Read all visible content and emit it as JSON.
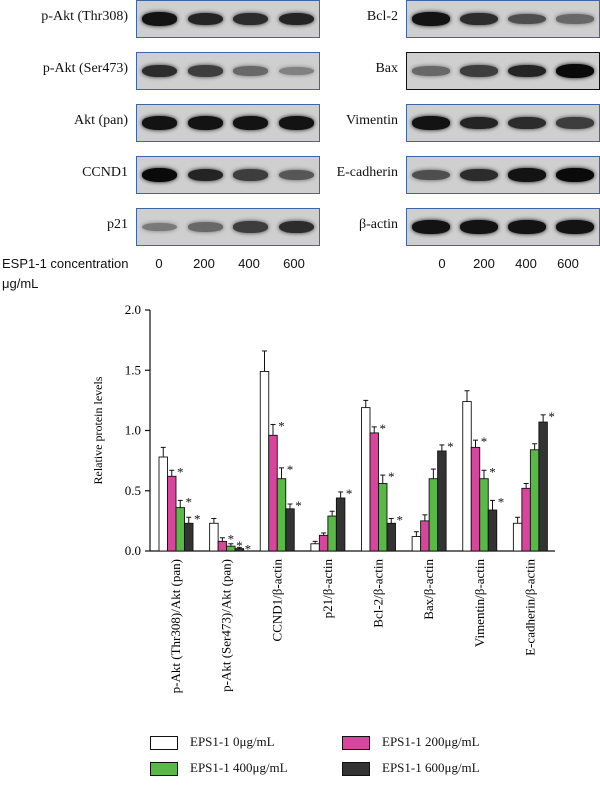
{
  "blots": {
    "left": [
      {
        "label": "p-Akt (Thr308)",
        "intensity": [
          0.95,
          0.85,
          0.8,
          0.85
        ]
      },
      {
        "label": "p-Akt (Ser473)",
        "intensity": [
          0.8,
          0.7,
          0.45,
          0.3
        ]
      },
      {
        "label": "Akt (pan)",
        "intensity": [
          0.95,
          0.95,
          0.95,
          0.95
        ]
      },
      {
        "label": "CCND1",
        "intensity": [
          1.0,
          0.85,
          0.7,
          0.55
        ]
      },
      {
        "label": "p21",
        "intensity": [
          0.35,
          0.45,
          0.7,
          0.8
        ]
      }
    ],
    "right": [
      {
        "label": "Bcl-2",
        "intensity": [
          0.95,
          0.8,
          0.6,
          0.45
        ]
      },
      {
        "label": "Bax",
        "intensity": [
          0.45,
          0.7,
          0.85,
          1.0
        ]
      },
      {
        "label": "Vimentin",
        "intensity": [
          0.95,
          0.85,
          0.8,
          0.7
        ]
      },
      {
        "label": "E-cadherin",
        "intensity": [
          0.6,
          0.8,
          0.95,
          1.0
        ]
      },
      {
        "label": "β-actin",
        "intensity": [
          0.95,
          0.95,
          0.95,
          0.95
        ]
      }
    ],
    "concentration_label_line1": "ESP1-1 concentration",
    "concentration_label_line2": "μg/mL",
    "concentrations": [
      "0",
      "200",
      "400",
      "600"
    ]
  },
  "chart_data": {
    "type": "bar",
    "ylabel": "Relative protein levels",
    "ylim": [
      0,
      2.0
    ],
    "yticks": [
      "0.0",
      "0.5",
      "1.0",
      "1.5",
      "2.0"
    ],
    "categories": [
      "p-Akt (Thr308)/Akt (pan)",
      "p-Akt (Ser473)/Akt (pan)",
      "CCND1/β-actin",
      "p21/β-actin",
      "Bcl-2/β-actin",
      "Bax/β-actin",
      "Vimentin/β-actin",
      "E-cadherin/β-actin"
    ],
    "series": [
      {
        "name": "EPS1-1 0μg/mL",
        "color": "#ffffff",
        "values": [
          0.78,
          0.23,
          1.49,
          0.06,
          1.19,
          0.12,
          1.24,
          0.23
        ],
        "errors": [
          0.08,
          0.04,
          0.17,
          0.02,
          0.06,
          0.04,
          0.09,
          0.05
        ],
        "stars": [
          false,
          false,
          false,
          false,
          false,
          false,
          false,
          false
        ]
      },
      {
        "name": "EPS1-1 200μg/mL",
        "color": "#d8459c",
        "values": [
          0.62,
          0.08,
          0.96,
          0.13,
          0.98,
          0.25,
          0.86,
          0.52
        ],
        "errors": [
          0.05,
          0.03,
          0.09,
          0.02,
          0.05,
          0.05,
          0.06,
          0.04
        ],
        "stars": [
          true,
          true,
          true,
          true,
          true,
          true,
          true,
          true
        ]
      },
      {
        "name": "EPS1-1 400μg/mL",
        "color": "#58b947",
        "values": [
          0.36,
          0.04,
          0.6,
          0.29,
          0.56,
          0.6,
          0.6,
          0.84
        ],
        "errors": [
          0.06,
          0.02,
          0.09,
          0.04,
          0.07,
          0.08,
          0.07,
          0.05
        ],
        "stars": [
          true,
          true,
          true,
          true,
          true,
          true,
          true,
          true
        ]
      },
      {
        "name": "EPS1-1 600μg/mL",
        "color": "#333333",
        "values": [
          0.23,
          0.02,
          0.35,
          0.44,
          0.23,
          0.83,
          0.34,
          1.07
        ],
        "errors": [
          0.05,
          0.01,
          0.04,
          0.05,
          0.04,
          0.05,
          0.08,
          0.06
        ],
        "stars": [
          true,
          true,
          true,
          true,
          true,
          true,
          true,
          true
        ]
      }
    ],
    "star": "*",
    "legend_position": "bottom"
  }
}
